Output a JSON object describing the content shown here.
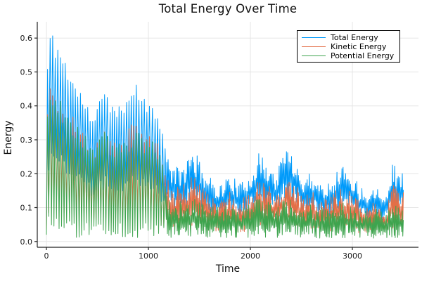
{
  "title": "Total Energy Over Time",
  "axes": {
    "xlabel": "Time",
    "ylabel": "Energy",
    "x_tick_labels": [
      "0",
      "1000",
      "2000",
      "3000"
    ],
    "y_tick_labels": [
      "0.0",
      "0.1",
      "0.2",
      "0.3",
      "0.4",
      "0.5",
      "0.6"
    ]
  },
  "legend": {
    "entries": [
      {
        "label": "Total Energy",
        "color": "#009AFA"
      },
      {
        "label": "Kinetic Energy",
        "color": "#E36F47"
      },
      {
        "label": "Potential Energy",
        "color": "#3EA44E"
      }
    ],
    "position": "top-right",
    "border_color": "#000000"
  },
  "chart_data": {
    "type": "line",
    "title": "Total Energy Over Time",
    "xlabel": "Time",
    "ylabel": "Energy",
    "xlim": [
      -90,
      3648
    ],
    "ylim": [
      -0.017,
      0.648
    ],
    "x_ticks": [
      0,
      1000,
      2000,
      3000
    ],
    "y_ticks": [
      0.0,
      0.1,
      0.2,
      0.3,
      0.4,
      0.5,
      0.6
    ],
    "grid": true,
    "grid_color": "#e5e5e5",
    "spine_color": "#222222",
    "legend_position": "top-right",
    "x_max": 3500,
    "oscillation": {
      "description": "fast quasi-periodic oscillation between lower and upper envelopes; large regular swings before t~1165, dense small noise after",
      "early_half_period": 12.5,
      "late_half_period": 6,
      "transition_t": 1165
    },
    "envelope_x": [
      0,
      30,
      80,
      150,
      220,
      300,
      380,
      460,
      520,
      570,
      620,
      700,
      760,
      820,
      870,
      920,
      980,
      1040,
      1100,
      1150,
      1200,
      1280,
      1350,
      1430,
      1500,
      1600,
      1700,
      1800,
      1900,
      2000,
      2080,
      2160,
      2250,
      2350,
      2430,
      2500,
      2600,
      2700,
      2800,
      2900,
      2980,
      3060,
      3150,
      3250,
      3330,
      3400,
      3450,
      3500
    ],
    "series": [
      {
        "name": "Total Energy",
        "color": "#009AFA",
        "envelope_hi": [
          0.5,
          0.63,
          0.61,
          0.57,
          0.52,
          0.46,
          0.43,
          0.36,
          0.42,
          0.49,
          0.42,
          0.39,
          0.43,
          0.46,
          0.49,
          0.46,
          0.41,
          0.43,
          0.39,
          0.31,
          0.24,
          0.22,
          0.23,
          0.28,
          0.24,
          0.19,
          0.17,
          0.2,
          0.17,
          0.21,
          0.26,
          0.24,
          0.2,
          0.29,
          0.26,
          0.19,
          0.21,
          0.17,
          0.19,
          0.23,
          0.21,
          0.17,
          0.15,
          0.17,
          0.14,
          0.24,
          0.21,
          0.2
        ],
        "envelope_lo": [
          0.03,
          0.22,
          0.21,
          0.2,
          0.18,
          0.16,
          0.14,
          0.12,
          0.13,
          0.15,
          0.13,
          0.12,
          0.13,
          0.14,
          0.15,
          0.14,
          0.13,
          0.13,
          0.12,
          0.1,
          0.09,
          0.08,
          0.08,
          0.1,
          0.09,
          0.07,
          0.06,
          0.08,
          0.06,
          0.08,
          0.1,
          0.09,
          0.08,
          0.11,
          0.1,
          0.07,
          0.08,
          0.06,
          0.07,
          0.09,
          0.08,
          0.06,
          0.06,
          0.07,
          0.05,
          0.09,
          0.08,
          0.08
        ]
      },
      {
        "name": "Kinetic Energy",
        "color": "#E36F47",
        "envelope_hi": [
          0.38,
          0.47,
          0.46,
          0.43,
          0.39,
          0.35,
          0.32,
          0.27,
          0.31,
          0.37,
          0.31,
          0.29,
          0.32,
          0.34,
          0.37,
          0.35,
          0.31,
          0.32,
          0.29,
          0.23,
          0.18,
          0.16,
          0.17,
          0.2,
          0.18,
          0.14,
          0.12,
          0.15,
          0.12,
          0.15,
          0.19,
          0.17,
          0.15,
          0.21,
          0.19,
          0.14,
          0.15,
          0.12,
          0.14,
          0.17,
          0.15,
          0.12,
          0.11,
          0.12,
          0.1,
          0.17,
          0.15,
          0.15
        ],
        "envelope_lo": [
          0.02,
          0.07,
          0.07,
          0.06,
          0.06,
          0.05,
          0.05,
          0.04,
          0.05,
          0.05,
          0.04,
          0.04,
          0.04,
          0.05,
          0.05,
          0.05,
          0.04,
          0.04,
          0.04,
          0.035,
          0.03,
          0.03,
          0.03,
          0.035,
          0.03,
          0.025,
          0.02,
          0.03,
          0.02,
          0.03,
          0.035,
          0.03,
          0.03,
          0.04,
          0.035,
          0.025,
          0.03,
          0.02,
          0.025,
          0.03,
          0.03,
          0.02,
          0.02,
          0.025,
          0.02,
          0.03,
          0.03,
          0.03
        ]
      },
      {
        "name": "Potential Energy",
        "color": "#3EA44E",
        "envelope_hi": [
          0.4,
          0.46,
          0.44,
          0.41,
          0.38,
          0.34,
          0.32,
          0.28,
          0.3,
          0.34,
          0.3,
          0.29,
          0.31,
          0.32,
          0.34,
          0.32,
          0.3,
          0.31,
          0.28,
          0.22,
          0.13,
          0.12,
          0.12,
          0.13,
          0.12,
          0.11,
          0.1,
          0.11,
          0.1,
          0.11,
          0.13,
          0.12,
          0.11,
          0.13,
          0.12,
          0.1,
          0.11,
          0.1,
          0.1,
          0.12,
          0.11,
          0.09,
          0.09,
          0.1,
          0.08,
          0.11,
          0.1,
          0.1
        ],
        "envelope_lo": [
          0.005,
          0.005,
          0.005,
          0.005,
          0.005,
          0.005,
          0.005,
          0.005,
          0.005,
          0.005,
          0.005,
          0.005,
          0.005,
          0.005,
          0.005,
          0.005,
          0.005,
          0.005,
          0.005,
          0.005,
          0.005,
          0.005,
          0.005,
          0.005,
          0.005,
          0.005,
          0.005,
          0.005,
          0.005,
          0.005,
          0.005,
          0.005,
          0.005,
          0.005,
          0.005,
          0.005,
          0.005,
          0.005,
          0.005,
          0.005,
          0.005,
          0.005,
          0.005,
          0.005,
          0.005,
          0.005,
          0.005,
          0.005
        ]
      }
    ]
  }
}
